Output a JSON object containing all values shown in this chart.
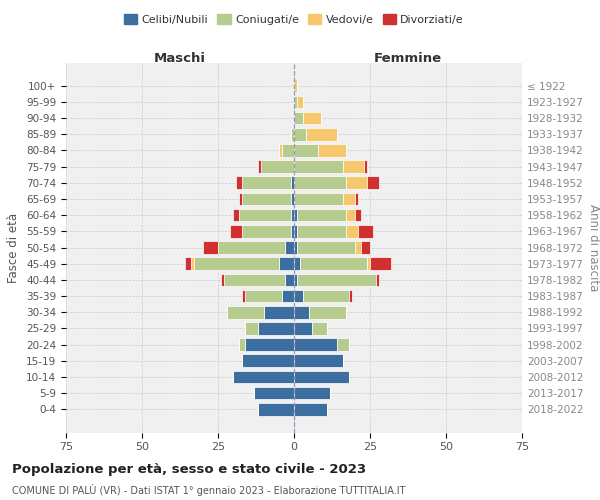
{
  "age_groups": [
    "0-4",
    "5-9",
    "10-14",
    "15-19",
    "20-24",
    "25-29",
    "30-34",
    "35-39",
    "40-44",
    "45-49",
    "50-54",
    "55-59",
    "60-64",
    "65-69",
    "70-74",
    "75-79",
    "80-84",
    "85-89",
    "90-94",
    "95-99",
    "100+"
  ],
  "birth_years": [
    "2018-2022",
    "2013-2017",
    "2008-2012",
    "2003-2007",
    "1998-2002",
    "1993-1997",
    "1988-1992",
    "1983-1987",
    "1978-1982",
    "1973-1977",
    "1968-1972",
    "1963-1967",
    "1958-1962",
    "1953-1957",
    "1948-1952",
    "1943-1947",
    "1938-1942",
    "1933-1937",
    "1928-1932",
    "1923-1927",
    "≤ 1922"
  ],
  "male": {
    "celibi": [
      12,
      13,
      20,
      17,
      16,
      12,
      10,
      4,
      3,
      5,
      3,
      1,
      1,
      1,
      1,
      0,
      0,
      0,
      0,
      0,
      0
    ],
    "coniugati": [
      0,
      0,
      0,
      0,
      2,
      4,
      12,
      12,
      20,
      28,
      22,
      16,
      17,
      16,
      16,
      11,
      4,
      1,
      0,
      0,
      0
    ],
    "vedovi": [
      0,
      0,
      0,
      0,
      0,
      0,
      0,
      0,
      0,
      1,
      0,
      0,
      0,
      0,
      0,
      0,
      1,
      0,
      0,
      0,
      0
    ],
    "divorziati": [
      0,
      0,
      0,
      0,
      0,
      0,
      0,
      1,
      1,
      2,
      5,
      4,
      2,
      1,
      2,
      1,
      0,
      0,
      0,
      0,
      0
    ]
  },
  "female": {
    "nubili": [
      11,
      12,
      18,
      16,
      14,
      6,
      5,
      3,
      1,
      2,
      1,
      1,
      1,
      0,
      0,
      0,
      0,
      0,
      0,
      0,
      0
    ],
    "coniugate": [
      0,
      0,
      0,
      0,
      4,
      5,
      12,
      15,
      26,
      22,
      19,
      16,
      16,
      16,
      17,
      16,
      8,
      4,
      3,
      1,
      0
    ],
    "vedove": [
      0,
      0,
      0,
      0,
      0,
      0,
      0,
      0,
      0,
      1,
      2,
      4,
      3,
      4,
      7,
      7,
      9,
      10,
      6,
      2,
      1
    ],
    "divorziate": [
      0,
      0,
      0,
      0,
      0,
      0,
      0,
      1,
      1,
      7,
      3,
      5,
      2,
      1,
      4,
      1,
      0,
      0,
      0,
      0,
      0
    ]
  },
  "colors": {
    "celibi": "#3d6ea0",
    "coniugati": "#b5cc8e",
    "vedovi": "#f5c86e",
    "divorziati": "#d03030"
  },
  "xlim": 75,
  "title": "Popolazione per età, sesso e stato civile - 2023",
  "subtitle": "COMUNE DI PALÙ (VR) - Dati ISTAT 1° gennaio 2023 - Elaborazione TUTTITALIA.IT",
  "ylabel_left": "Fasce di età",
  "ylabel_right": "Anni di nascita",
  "xlabel_left": "Maschi",
  "xlabel_right": "Femmine",
  "bg_color": "#f0f0f0",
  "grid_color": "#cccccc"
}
